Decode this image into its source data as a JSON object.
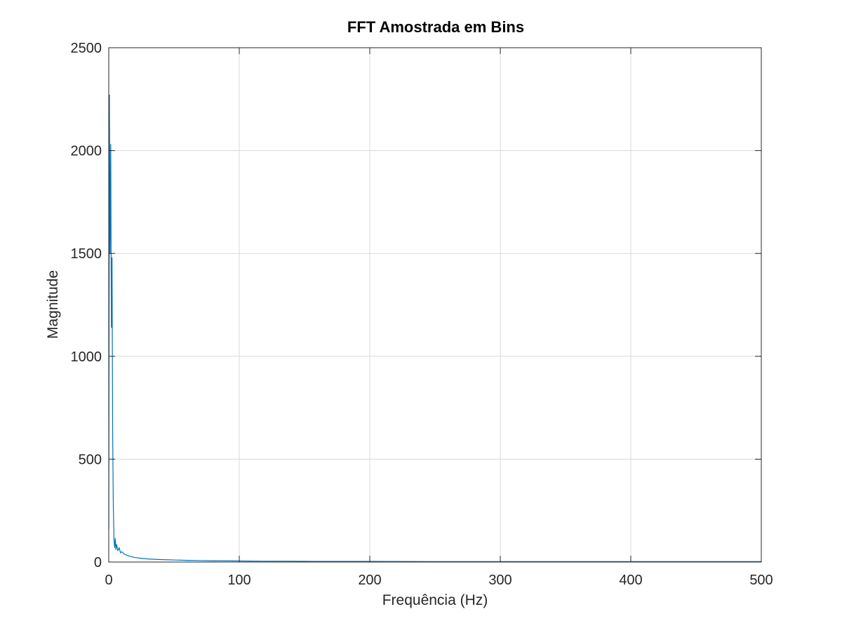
{
  "chart_data": {
    "type": "line",
    "title": "FFT Amostrada em Bins",
    "xlabel": "Frequência (Hz)",
    "ylabel": "Magnitude",
    "xlim": [
      0,
      500
    ],
    "ylim": [
      0,
      2500
    ],
    "xticks": [
      0,
      100,
      200,
      300,
      400,
      500
    ],
    "yticks": [
      0,
      500,
      1000,
      1500,
      2000,
      2500
    ],
    "xtick_labels": [
      "0",
      "100",
      "200",
      "300",
      "400",
      "500"
    ],
    "ytick_labels": [
      "0",
      "500",
      "1000",
      "1500",
      "2000",
      "2500"
    ],
    "grid": true,
    "series": [
      {
        "color": "#0072bd",
        "x": [
          0,
          0.5,
          1,
          1.5,
          2,
          2.5,
          3,
          3.5,
          4,
          4.5,
          5,
          5.5,
          6,
          7,
          8,
          9,
          10,
          12,
          15,
          20,
          25,
          30,
          40,
          50,
          60,
          70,
          80,
          90,
          100,
          120,
          140,
          160,
          200,
          250,
          300,
          350,
          400,
          450,
          500
        ],
        "y": [
          160,
          2270,
          1500,
          2030,
          1140,
          1480,
          620,
          270,
          110,
          70,
          115,
          60,
          85,
          55,
          70,
          45,
          50,
          38,
          30,
          22,
          18,
          15,
          12,
          10,
          8,
          7,
          6,
          6,
          5,
          4,
          4,
          3,
          3,
          2,
          2,
          2,
          2,
          2,
          2
        ]
      }
    ]
  }
}
